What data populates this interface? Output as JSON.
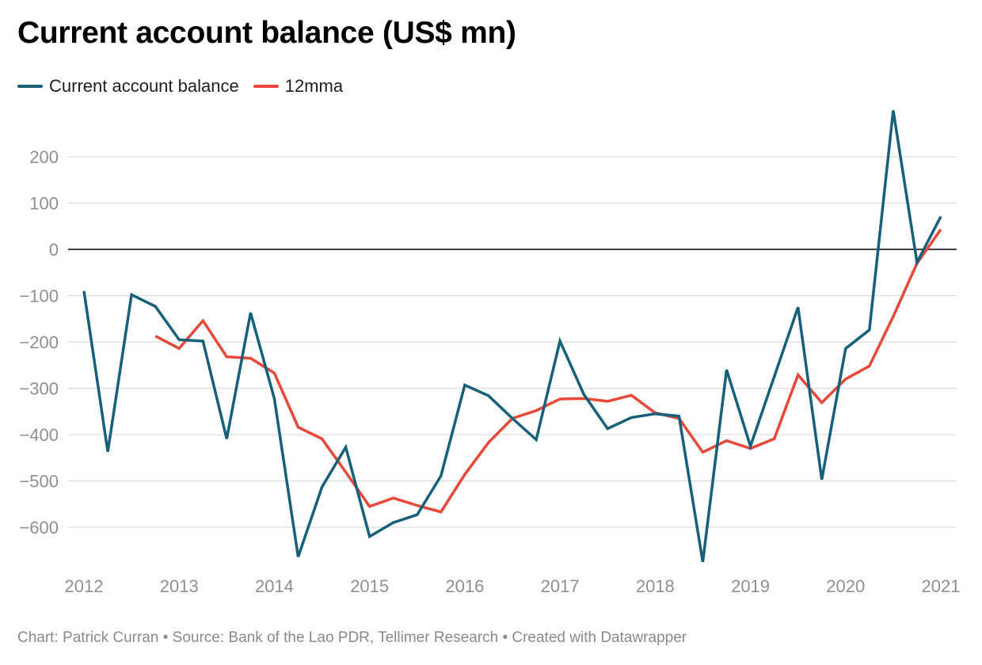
{
  "title": "Current account balance (US$ mn)",
  "footer": "Chart: Patrick Curran • Source: Bank of the Lao PDR, Tellimer Research • Created with Datawrapper",
  "chart_data": {
    "type": "line",
    "title": "Current account balance (US$ mn)",
    "xlabel": "",
    "ylabel": "",
    "xlim": [
      2012,
      2021
    ],
    "ylim": [
      -680,
      300
    ],
    "yticks": [
      200,
      100,
      0,
      -100,
      -200,
      -300,
      -400,
      -500,
      -600
    ],
    "ytick_labels": [
      "200",
      "100",
      "0",
      "−100",
      "−200",
      "−300",
      "−400",
      "−500",
      "−600"
    ],
    "xticks": [
      2012,
      2013,
      2014,
      2015,
      2016,
      2017,
      2018,
      2019,
      2020,
      2021
    ],
    "xtick_labels": [
      "2012",
      "2013",
      "2014",
      "2015",
      "2016",
      "2017",
      "2018",
      "2019",
      "2020",
      "2021"
    ],
    "grid": true,
    "zero_line": true,
    "legend": "top-left",
    "series": [
      {
        "name": "Current account balance",
        "color": "#17607a",
        "x": [
          2012,
          2012.25,
          2012.5,
          2012.75,
          2013,
          2013.25,
          2013.5,
          2013.75,
          2014,
          2014.25,
          2014.5,
          2014.75,
          2015,
          2015.25,
          2015.5,
          2015.75,
          2016,
          2016.25,
          2016.5,
          2016.75,
          2017,
          2017.25,
          2017.5,
          2017.75,
          2018,
          2018.25,
          2018.5,
          2018.75,
          2019,
          2019.25,
          2019.5,
          2019.75,
          2020,
          2020.25,
          2020.5,
          2020.75,
          2021
        ],
        "values": [
          -90,
          -437,
          -98,
          -123,
          -195,
          -198,
          -409,
          -137,
          -322,
          -664,
          -513,
          -427,
          -620,
          -590,
          -573,
          -489,
          -293,
          -316,
          -365,
          -411,
          -198,
          -313,
          -387,
          -363,
          -355,
          -360,
          -675,
          -260,
          -425,
          -275,
          -125,
          -497,
          -214,
          -174,
          300,
          -28,
          71
        ]
      },
      {
        "name": "12mma",
        "color": "#e8483a",
        "x": [
          2012.75,
          2013,
          2013.25,
          2013.5,
          2013.75,
          2014,
          2014.25,
          2014.5,
          2014.75,
          2015,
          2015.25,
          2015.5,
          2015.75,
          2016,
          2016.25,
          2016.5,
          2016.75,
          2017,
          2017.25,
          2017.5,
          2017.75,
          2018,
          2018.25,
          2018.5,
          2018.75,
          2019,
          2019.25,
          2019.5,
          2019.75,
          2020,
          2020.25,
          2020.5,
          2020.75,
          2021
        ],
        "values": [
          -187,
          -214,
          -154,
          -232,
          -235,
          -267,
          -384,
          -409,
          -481,
          -555,
          -537,
          -553,
          -567,
          -486,
          -417,
          -365,
          -348,
          -323,
          -322,
          -328,
          -315,
          -353,
          -365,
          -438,
          -413,
          -430,
          -409,
          -271,
          -331,
          -280,
          -252,
          -145,
          -30,
          43
        ]
      }
    ]
  }
}
